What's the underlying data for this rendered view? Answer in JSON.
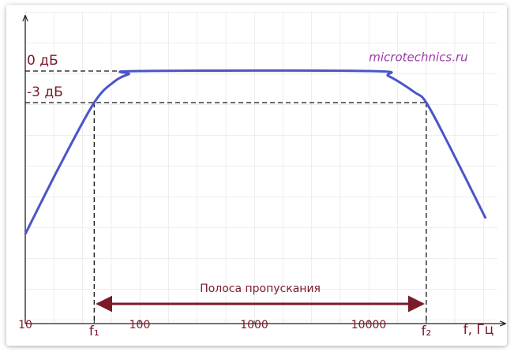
{
  "chart_data": {
    "type": "line",
    "x_scale": "log",
    "x": [
      10,
      20,
      40,
      60,
      80,
      100,
      10000,
      15000,
      25000,
      31800,
      50000,
      105000
    ],
    "values": [
      -15.5,
      -9,
      -3,
      -1,
      -0.3,
      0,
      0,
      -0.5,
      -2,
      -3,
      -7,
      -14
    ],
    "color": "#4b55c8",
    "xlim": [
      10,
      133000
    ],
    "ylim": [
      -24,
      4.5
    ],
    "xticks": [
      10,
      {
        "value": 40,
        "label": "f₁"
      },
      100,
      1000,
      10000,
      {
        "value": 31800,
        "label": "f₂"
      }
    ],
    "yticks": [
      {
        "value": 0,
        "label": "0 дБ"
      },
      {
        "value": -3,
        "label": "-3 дБ"
      }
    ],
    "x_label": "f, Гц",
    "annotation": "Полоса пропускания",
    "watermark": "microtechnics.ru",
    "grid": true
  }
}
